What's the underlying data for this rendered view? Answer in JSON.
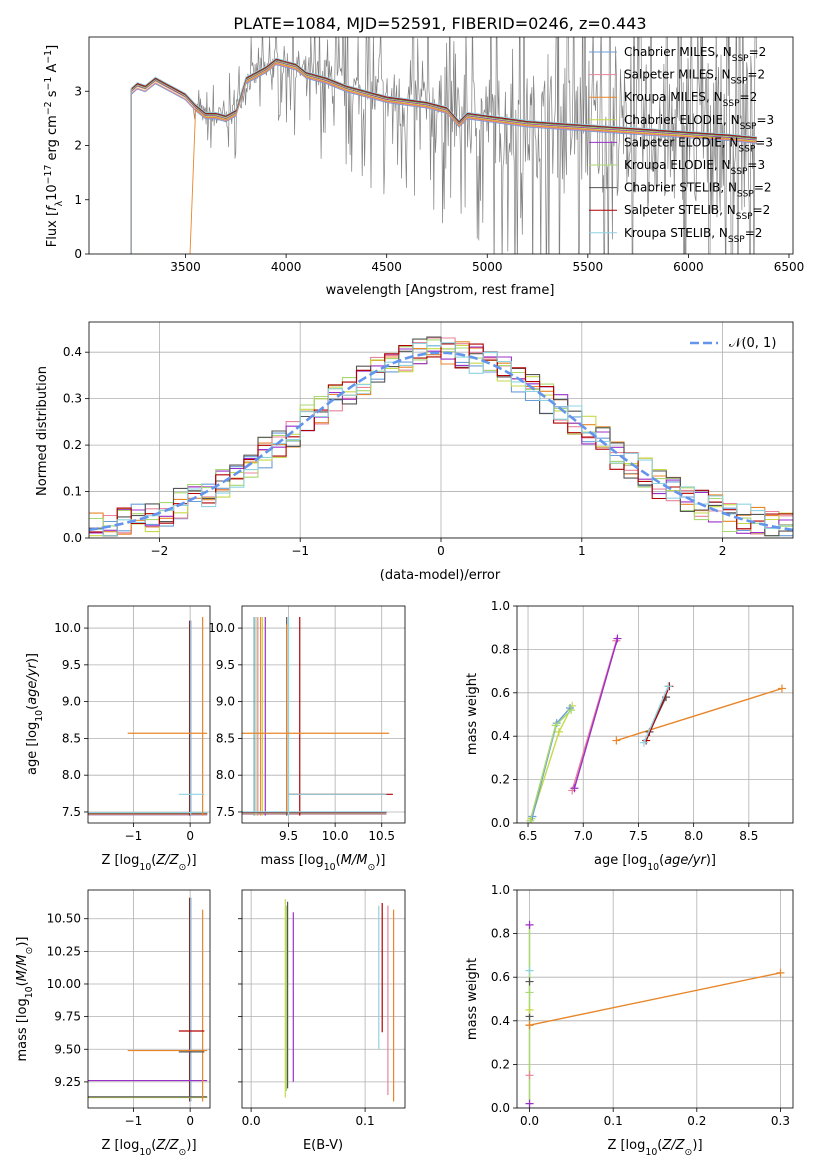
{
  "figure_title": "PLATE=1084, MJD=52591, FIBERID=0246, z=0.443",
  "colors": [
    "#6a9ed8",
    "#e8849b",
    "#e8862a",
    "#c6d94a",
    "#9b30c8",
    "#a8d870",
    "#555555",
    "#b00000",
    "#8fd3e0"
  ],
  "chart_data": [
    {
      "id": "spectrum",
      "type": "line",
      "xlabel": "wavelength [Angstrom, rest frame]",
      "ylabel": "Flux [f_λ 10^-17 erg cm^-2 s^-1 A^-1]",
      "xlim": [
        3020,
        6520
      ],
      "ylim": [
        0,
        4.0
      ],
      "xticks": [
        3500,
        4000,
        4500,
        5000,
        5500,
        6000,
        6500
      ],
      "yticks": [
        0,
        1,
        2,
        3
      ],
      "legend_position": "upper right",
      "legend": [
        {
          "pre": "Chabrier MILES, N",
          "sub": "SSP",
          "post": "=2"
        },
        {
          "pre": "Salpeter MILES, N",
          "sub": "SSP",
          "post": "=2"
        },
        {
          "pre": "Kroupa MILES, N",
          "sub": "SSP",
          "post": "=2"
        },
        {
          "pre": "Chabrier ELODIE, N",
          "sub": "SSP",
          "post": "=3"
        },
        {
          "pre": "Salpeter ELODIE, N",
          "sub": "SSP",
          "post": "=3"
        },
        {
          "pre": "Kroupa ELODIE, N",
          "sub": "SSP",
          "post": "=3"
        },
        {
          "pre": "Chabrier STELIB, N",
          "sub": "SSP",
          "post": "=2"
        },
        {
          "pre": "Salpeter STELIB, N",
          "sub": "SSP",
          "post": "=2"
        },
        {
          "pre": "Kroupa STELIB, N",
          "sub": "SSP",
          "post": "=2"
        }
      ],
      "model_x": [
        3230,
        3260,
        3300,
        3350,
        3400,
        3450,
        3500,
        3550,
        3600,
        3650,
        3700,
        3750,
        3800,
        3850,
        3900,
        3950,
        4000,
        4050,
        4100,
        4200,
        4300,
        4400,
        4500,
        4600,
        4700,
        4800,
        4860,
        4900,
        5000,
        5200,
        5400,
        5600,
        5800,
        6000,
        6200,
        6340
      ],
      "model_y": [
        3.0,
        3.1,
        3.05,
        3.2,
        3.1,
        3.0,
        2.9,
        2.7,
        2.55,
        2.55,
        2.5,
        2.6,
        3.2,
        3.3,
        3.4,
        3.55,
        3.5,
        3.45,
        3.3,
        3.2,
        3.05,
        2.95,
        2.85,
        2.8,
        2.75,
        2.65,
        2.4,
        2.55,
        2.5,
        2.4,
        2.35,
        2.3,
        2.25,
        2.2,
        2.15,
        2.1
      ],
      "model_starts": [
        3230,
        3230,
        3520,
        3230,
        3230,
        3230,
        3230,
        3230,
        3230
      ]
    },
    {
      "id": "residuals",
      "type": "histogram",
      "xlabel": "(data-model)/error",
      "ylabel": "Normed distribution",
      "xlim": [
        -2.5,
        2.5
      ],
      "ylim": [
        0,
        0.465
      ],
      "xticks": [
        -2,
        -1,
        0,
        1,
        2
      ],
      "yticks": [
        0.0,
        0.1,
        0.2,
        0.3,
        0.4
      ],
      "legend_position": "upper right",
      "legend": "𝒩(0, 1)",
      "bins": 50,
      "gaussian": {
        "mu": 0,
        "sigma": 1
      }
    },
    {
      "id": "age-vs-Z",
      "type": "errorbar",
      "xlabel": "Z [log10(Z/Z⊙)]",
      "ylabel": "age [log10(age/yr)]",
      "xlim": [
        -1.8,
        0.35
      ],
      "ylim": [
        7.35,
        10.3
      ],
      "xticks": [
        -1,
        0
      ],
      "yticks": [
        7.5,
        8.0,
        8.5,
        9.0,
        9.5,
        10.0
      ]
    },
    {
      "id": "age-vs-mass",
      "type": "errorbar",
      "xlabel": "mass [log10(M/M⊙)]",
      "xlim": [
        9.0,
        10.75
      ],
      "ylim": [
        7.35,
        10.3
      ],
      "xticks": [
        9.5,
        10.0,
        10.5
      ],
      "yticks": [
        7.5,
        8.0,
        8.5,
        9.0,
        9.5,
        10.0
      ]
    },
    {
      "id": "weight-vs-age",
      "type": "line",
      "xlabel": "age [log10(age/yr)]",
      "ylabel": "mass weight",
      "xlim": [
        6.4,
        8.9
      ],
      "ylim": [
        0,
        1.0
      ],
      "xticks": [
        6.5,
        7.0,
        7.5,
        8.0,
        8.5
      ],
      "yticks": [
        0.0,
        0.2,
        0.4,
        0.6,
        0.8,
        1.0
      ],
      "series": [
        {
          "x": [
            7.3,
            8.8
          ],
          "y": [
            0.38,
            0.62
          ]
        },
        {
          "x": [
            6.9,
            7.3
          ],
          "y": [
            0.15,
            0.84
          ]
        },
        {
          "x": [
            6.92,
            7.31
          ],
          "y": [
            0.16,
            0.85
          ]
        },
        {
          "x": [
            6.53,
            6.78,
            6.9
          ],
          "y": [
            0.02,
            0.42,
            0.54
          ]
        },
        {
          "x": [
            6.54,
            6.76,
            6.88
          ],
          "y": [
            0.03,
            0.46,
            0.53
          ]
        },
        {
          "x": [
            6.52,
            6.75,
            6.89
          ],
          "y": [
            0.01,
            0.45,
            0.52
          ]
        },
        {
          "x": [
            7.6,
            7.75
          ],
          "y": [
            0.42,
            0.58
          ]
        },
        {
          "x": [
            7.57,
            7.78
          ],
          "y": [
            0.38,
            0.63
          ]
        },
        {
          "x": [
            7.55,
            7.77
          ],
          "y": [
            0.37,
            0.63
          ]
        }
      ]
    },
    {
      "id": "mass-vs-Z",
      "type": "errorbar",
      "xlabel": "Z [log10(Z/Z⊙)]",
      "ylabel": "mass [log10(M/M⊙)]",
      "xlim": [
        -1.8,
        0.35
      ],
      "ylim": [
        9.05,
        10.72
      ],
      "xticks": [
        -1,
        0
      ],
      "yticks": [
        9.25,
        9.5,
        9.75,
        10.0,
        10.25,
        10.5
      ]
    },
    {
      "id": "mass-vs-EBV",
      "type": "errorbar",
      "xlabel": "E(B-V)",
      "xlim": [
        -0.008,
        0.135
      ],
      "ylim": [
        9.05,
        10.72
      ],
      "xticks": [
        0.0,
        0.1
      ],
      "yticks": [
        9.25,
        9.5,
        9.75,
        10.0,
        10.25,
        10.5
      ]
    },
    {
      "id": "weight-vs-Z",
      "type": "line",
      "xlabel": "Z [log10(Z/Z⊙)]",
      "ylabel": "mass weight",
      "xlim": [
        -0.015,
        0.315
      ],
      "ylim": [
        0,
        1.0
      ],
      "xticks": [
        0.0,
        0.1,
        0.2,
        0.3
      ],
      "yticks": [
        0.0,
        0.2,
        0.4,
        0.6,
        0.8,
        1.0
      ],
      "series": [
        {
          "x": [
            0.0,
            0.3
          ],
          "y": [
            0.38,
            0.62
          ]
        }
      ]
    }
  ]
}
